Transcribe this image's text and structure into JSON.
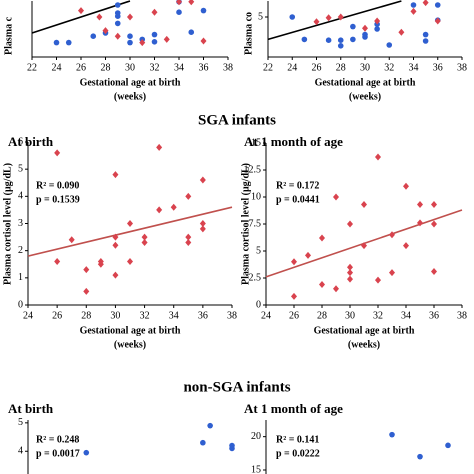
{
  "headings": [
    "SGA infants",
    "non-SGA infants"
  ],
  "chart_data": [
    {
      "type": "scatter",
      "ylabel": "Plasma c",
      "xlabel": [
        "Gestational age at birth",
        "(weeks)"
      ],
      "xlim": [
        22,
        38
      ],
      "xticks": [
        22,
        24,
        26,
        28,
        30,
        32,
        34,
        36,
        38
      ],
      "ylim": [
        0,
        7
      ],
      "yticks": [],
      "series": [
        {
          "color": "#2f5fd0",
          "marker": "circle",
          "x": [
            24,
            25,
            27,
            28,
            29,
            29,
            29,
            29,
            30,
            30,
            31,
            32,
            32,
            34,
            35,
            34,
            36
          ],
          "y": [
            1.8,
            1.8,
            2.6,
            3.0,
            6.5,
            5.5,
            5.1,
            4.2,
            1.8,
            2.6,
            2.2,
            1.9,
            2.8,
            6.9,
            3.1,
            5.6,
            5.8
          ]
        },
        {
          "color": "#d9434e",
          "marker": "diamond",
          "x": [
            26,
            27.5,
            28,
            29,
            30,
            31,
            32,
            33,
            34,
            35,
            36
          ],
          "y": [
            5.8,
            5.0,
            3.3,
            2.6,
            5.0,
            1.8,
            5.6,
            2.2,
            6.9,
            6.9,
            2.0
          ]
        }
      ],
      "trendline": {
        "color": "#000000",
        "x": [
          22,
          30
        ],
        "y": [
          3.0,
          7.0
        ]
      }
    },
    {
      "type": "scatter",
      "ylabel": "Plasma co",
      "xlabel": [
        "Gestational age at birth",
        "(weeks)"
      ],
      "xlim": [
        22,
        38
      ],
      "xticks": [
        22,
        24,
        26,
        28,
        30,
        32,
        34,
        36,
        38
      ],
      "ylim": [
        0,
        7
      ],
      "yticks": [
        5
      ],
      "series": [
        {
          "color": "#2f5fd0",
          "marker": "circle",
          "x": [
            24,
            25,
            27,
            28,
            28,
            29,
            29,
            30,
            30,
            31,
            31,
            32,
            34,
            35,
            35,
            36,
            36
          ],
          "y": [
            5.0,
            2.2,
            2.1,
            1.4,
            2.1,
            2.2,
            3.8,
            2.5,
            2.8,
            3.5,
            4.1,
            1.5,
            6.5,
            2.8,
            2.0,
            4.6,
            6.5
          ]
        },
        {
          "color": "#d9434e",
          "marker": "diamond",
          "x": [
            26,
            27,
            28,
            30,
            31,
            33,
            34,
            35,
            36
          ],
          "y": [
            4.4,
            4.9,
            5.0,
            3.6,
            4.5,
            3.1,
            5.7,
            6.8,
            4.5
          ]
        }
      ],
      "trendline": {
        "color": "#000000",
        "x": [
          22,
          33
        ],
        "y": [
          2.2,
          7.0
        ]
      }
    },
    {
      "type": "scatter",
      "title": "At birth",
      "ylabel": "Plasma cortisol level (μg/dL)",
      "xlabel": [
        "Gestational age at birth",
        "(weeks)"
      ],
      "annotations": [
        "R² = 0.090",
        "p = 0.1539"
      ],
      "xlim": [
        24,
        38
      ],
      "xticks": [
        24,
        26,
        28,
        30,
        32,
        34,
        36,
        38
      ],
      "ylim": [
        0,
        6
      ],
      "yticks": [
        0,
        1,
        2,
        3,
        4,
        5,
        6
      ],
      "series": [
        {
          "color": "#d9434e",
          "marker": "diamond",
          "x": [
            26,
            26,
            27,
            28,
            28,
            29,
            29,
            30,
            30,
            30,
            30,
            31,
            31,
            32,
            32,
            33,
            33,
            34,
            35,
            35,
            35,
            36,
            36,
            36
          ],
          "y": [
            5.6,
            1.6,
            2.4,
            1.3,
            0.5,
            1.6,
            1.5,
            4.8,
            2.5,
            2.2,
            1.1,
            3.0,
            1.6,
            2.5,
            2.3,
            5.8,
            3.5,
            3.6,
            4.0,
            2.5,
            2.3,
            4.6,
            3.0,
            2.8
          ]
        }
      ],
      "trendline": {
        "color": "#c0504d",
        "x": [
          24,
          38
        ],
        "y": [
          1.8,
          3.6
        ]
      }
    },
    {
      "type": "scatter",
      "title": "At 1 month of age",
      "ylabel": "Plasma cortisol level (μg/dL)",
      "xlabel": [
        "Gestational age at birth",
        "(weeks)"
      ],
      "annotations": [
        "R² = 0.172",
        "p = 0.0441"
      ],
      "xlim": [
        24,
        38
      ],
      "xticks": [
        24,
        26,
        28,
        30,
        32,
        34,
        36,
        38
      ],
      "ylim": [
        0,
        15
      ],
      "yticks": [
        0,
        {
          "value": 2.5,
          "label": "2.5"
        },
        5,
        {
          "value": 7.5,
          "label": "7.5"
        },
        10,
        {
          "value": 12.5,
          "label": "12.5"
        },
        15
      ],
      "series": [
        {
          "color": "#d9434e",
          "marker": "diamond",
          "x": [
            26,
            26,
            27,
            28,
            28,
            29,
            29,
            30,
            30,
            30,
            30,
            31,
            31,
            32,
            32,
            33,
            33,
            34,
            34,
            35,
            35,
            36,
            36,
            36
          ],
          "y": [
            4.0,
            0.8,
            4.6,
            6.2,
            1.9,
            10.0,
            1.5,
            7.5,
            3.5,
            3.0,
            2.4,
            9.3,
            5.5,
            13.7,
            2.3,
            6.5,
            3.0,
            11.0,
            5.5,
            9.3,
            7.6,
            9.3,
            7.5,
            3.1
          ]
        }
      ],
      "trendline": {
        "color": "#c0504d",
        "x": [
          24,
          38
        ],
        "y": [
          2.6,
          8.8
        ]
      }
    },
    {
      "type": "scatter",
      "title": "At birth",
      "annotations": [
        "R² = 0.248",
        "p = 0.0017"
      ],
      "xlim": [
        24,
        38
      ],
      "ylim": [
        3.2,
        5.1
      ],
      "yticks": [
        4,
        5
      ],
      "series": [
        {
          "color": "#2f5fd0",
          "marker": "circle",
          "x": [
            28,
            36,
            36.5,
            38,
            38
          ],
          "y": [
            3.95,
            4.3,
            4.9,
            4.2,
            4.1
          ]
        }
      ]
    },
    {
      "type": "scatter",
      "title": "At 1 month of age",
      "annotations": [
        "R² = 0.141",
        "p = 0.0222"
      ],
      "xlim": [
        24,
        38
      ],
      "ylim": [
        14.4,
        22.5
      ],
      "yticks": [
        15,
        20
      ],
      "series": [
        {
          "color": "#2f5fd0",
          "marker": "circle",
          "x": [
            33,
            35,
            37
          ],
          "y": [
            20.3,
            17,
            18.7
          ]
        }
      ]
    }
  ]
}
